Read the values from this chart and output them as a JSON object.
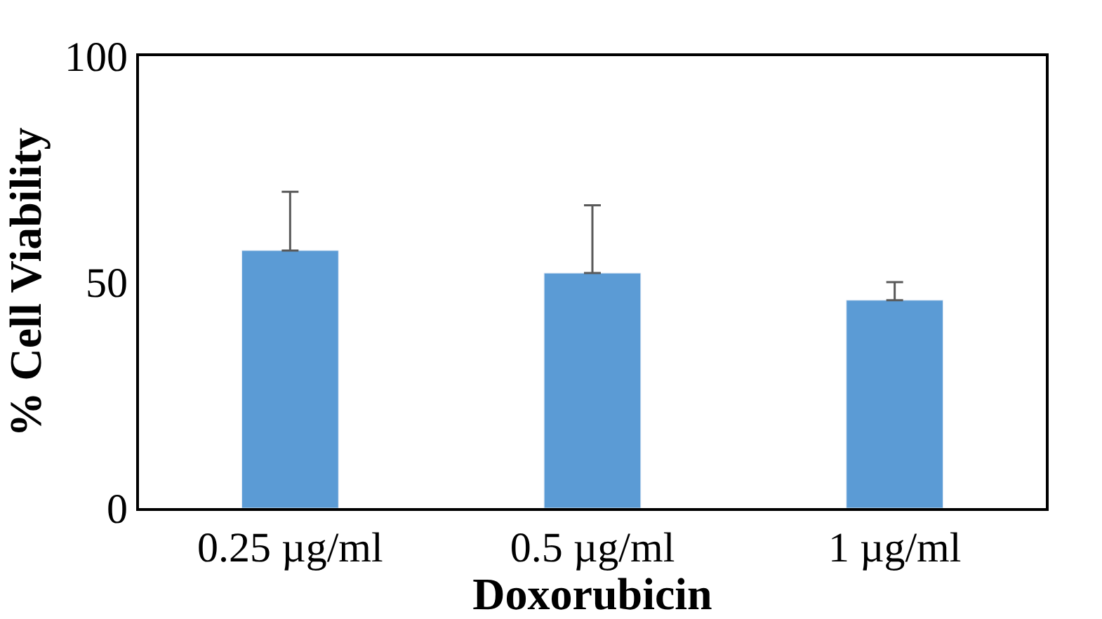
{
  "chart_data": {
    "type": "bar",
    "xlabel": "Doxorubicin",
    "ylabel": "% Cell Viability",
    "categories": [
      "0.25 µg/ml",
      "0.5 µg/ml",
      "1 µg/ml"
    ],
    "values": [
      57,
      52,
      46
    ],
    "color": "#5b9bd5",
    "errors": [
      [
        57,
        70
      ],
      [
        52,
        67
      ],
      [
        46,
        50
      ]
    ],
    "ylim": [
      0,
      100
    ],
    "yticks": [
      0,
      50,
      100
    ]
  }
}
